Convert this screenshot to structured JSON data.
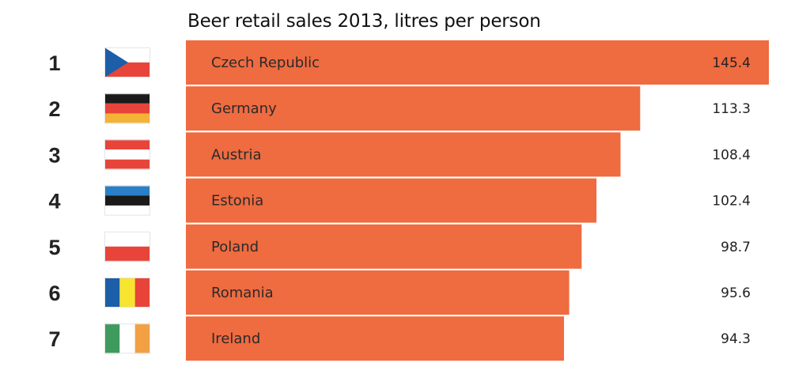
{
  "chart_data": {
    "type": "bar",
    "title": "Beer retail sales 2013, litres per person",
    "orientation": "horizontal",
    "xlim": [
      0,
      145.4
    ],
    "bar_color": "#ef6b40",
    "rows": [
      {
        "rank": "1",
        "country": "Czech Republic",
        "value": 145.4,
        "value_label": "145.4",
        "flag": "czech-flag"
      },
      {
        "rank": "2",
        "country": "Germany",
        "value": 113.3,
        "value_label": "113.3",
        "flag": "germany-flag"
      },
      {
        "rank": "3",
        "country": "Austria",
        "value": 108.4,
        "value_label": "108.4",
        "flag": "austria-flag"
      },
      {
        "rank": "4",
        "country": "Estonia",
        "value": 102.4,
        "value_label": "102.4",
        "flag": "estonia-flag"
      },
      {
        "rank": "5",
        "country": "Poland",
        "value": 98.7,
        "value_label": "98.7",
        "flag": "poland-flag"
      },
      {
        "rank": "6",
        "country": "Romania",
        "value": 95.6,
        "value_label": "95.6",
        "flag": "romania-flag"
      },
      {
        "rank": "7",
        "country": "Ireland",
        "value": 94.3,
        "value_label": "94.3",
        "flag": "ireland-flag"
      }
    ]
  }
}
